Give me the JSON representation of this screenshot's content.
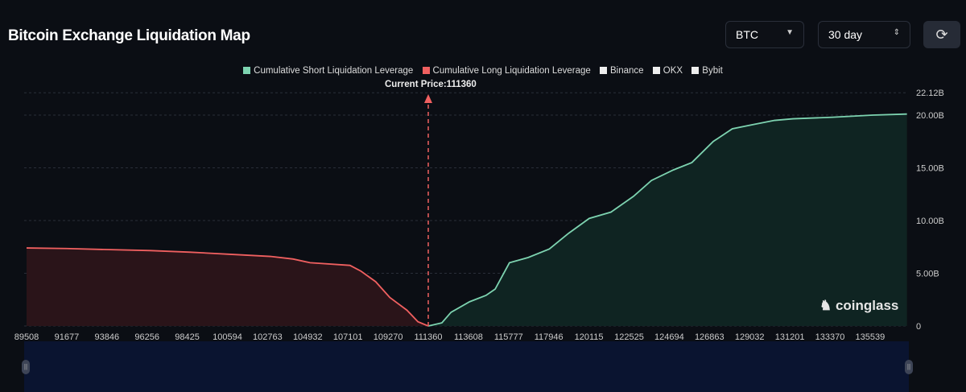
{
  "header": {
    "title": "Bitcoin Exchange Liquidation Map",
    "coin": "BTC",
    "range": "30 day",
    "refresh_icon": "refresh-icon"
  },
  "chart_data": {
    "type": "area",
    "title": "",
    "legend": [
      {
        "label": "Cumulative Short Liquidation Leverage",
        "color": "#7dd3b0"
      },
      {
        "label": "Cumulative Long Liquidation Leverage",
        "color": "#f06060"
      },
      {
        "label": "Binance",
        "color": "#eeeeee"
      },
      {
        "label": "OKX",
        "color": "#eeeeee"
      },
      {
        "label": "Bybit",
        "color": "#eeeeee"
      }
    ],
    "legend_position": "top",
    "current_price_label": "Current Price:111360",
    "current_price": 111360,
    "x_ticks": [
      "89508",
      "91677",
      "93846",
      "96256",
      "98425",
      "100594",
      "102763",
      "104932",
      "107101",
      "109270",
      "111360",
      "113608",
      "115777",
      "117946",
      "120115",
      "122525",
      "124694",
      "126863",
      "129032",
      "131201",
      "133370",
      "135539"
    ],
    "y_ticks": [
      "0",
      "5.00B",
      "10.00B",
      "15.00B",
      "20.00B",
      "22.12B"
    ],
    "ylim": [
      0,
      22.12
    ],
    "grid": true,
    "series": [
      {
        "name": "Cumulative Long Liquidation Leverage",
        "color": "#f06060",
        "fill": "#2a1419",
        "points": [
          [
            89508,
            7.4
          ],
          [
            91677,
            7.35
          ],
          [
            93846,
            7.25
          ],
          [
            96256,
            7.15
          ],
          [
            98425,
            7.0
          ],
          [
            100594,
            6.8
          ],
          [
            102763,
            6.6
          ],
          [
            104011,
            6.35
          ],
          [
            104932,
            6.0
          ],
          [
            107101,
            5.75
          ],
          [
            107700,
            5.2
          ],
          [
            108500,
            4.2
          ],
          [
            109270,
            2.7
          ],
          [
            110200,
            1.5
          ],
          [
            110800,
            0.4
          ],
          [
            111360,
            0.0
          ]
        ]
      },
      {
        "name": "Cumulative Short Liquidation Leverage",
        "color": "#7dd3b0",
        "fill": "#0f2422",
        "points": [
          [
            111360,
            0.0
          ],
          [
            112100,
            0.3
          ],
          [
            112600,
            1.3
          ],
          [
            113608,
            2.3
          ],
          [
            114500,
            2.9
          ],
          [
            115000,
            3.5
          ],
          [
            115777,
            6.0
          ],
          [
            116800,
            6.5
          ],
          [
            117946,
            7.3
          ],
          [
            119000,
            8.8
          ],
          [
            120115,
            10.2
          ],
          [
            121300,
            10.8
          ],
          [
            122525,
            12.3
          ],
          [
            123500,
            13.8
          ],
          [
            124694,
            14.8
          ],
          [
            125700,
            15.5
          ],
          [
            126863,
            17.5
          ],
          [
            127900,
            18.7
          ],
          [
            129032,
            19.1
          ],
          [
            130200,
            19.5
          ],
          [
            131201,
            19.65
          ],
          [
            133370,
            19.8
          ],
          [
            135539,
            20.0
          ],
          [
            137400,
            20.1
          ]
        ]
      }
    ]
  },
  "watermark": "coinglass"
}
